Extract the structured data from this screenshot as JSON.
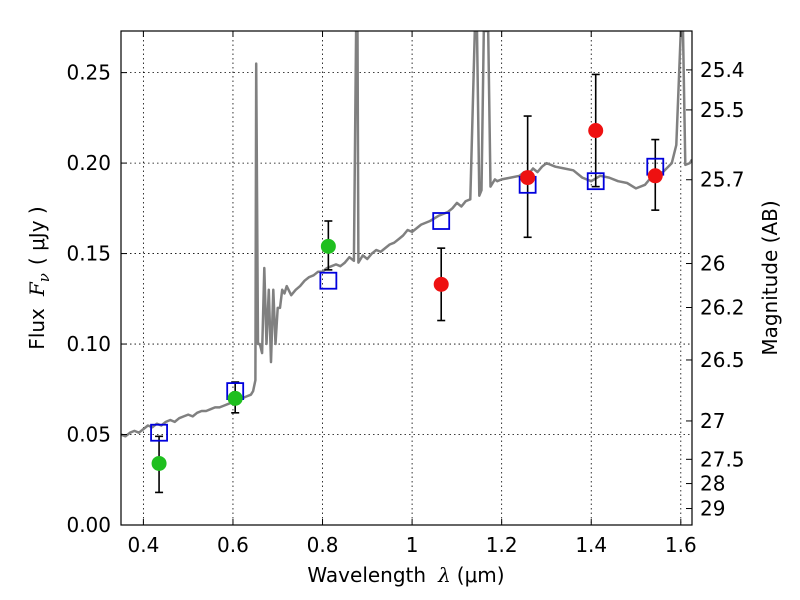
{
  "chart_data": {
    "type": "scatter",
    "xlabel": "Wavelength",
    "xlabel_symbol": "λ",
    "xlabel_unit": "(μm)",
    "ylabel": "Flux",
    "ylabel_symbol": "F",
    "ylabel_sub": "ν",
    "ylabel_unit": "( μJy )",
    "y2label": "Magnitude (AB)",
    "xlim": [
      0.35,
      1.625
    ],
    "ylim": [
      0.0,
      0.273
    ],
    "grid": true,
    "x_ticks": [
      {
        "value": 0.4,
        "label": "0.4"
      },
      {
        "value": 0.6,
        "label": "0.6"
      },
      {
        "value": 0.8,
        "label": "0.8"
      },
      {
        "value": 1.0,
        "label": "1"
      },
      {
        "value": 1.2,
        "label": "1.2"
      },
      {
        "value": 1.4,
        "label": "1.4"
      },
      {
        "value": 1.6,
        "label": "1.6"
      }
    ],
    "y_ticks": [
      {
        "value": 0.0,
        "label": "0.00"
      },
      {
        "value": 0.05,
        "label": "0.05"
      },
      {
        "value": 0.1,
        "label": "0.10"
      },
      {
        "value": 0.15,
        "label": "0.15"
      },
      {
        "value": 0.2,
        "label": "0.20"
      },
      {
        "value": 0.25,
        "label": "0.25"
      }
    ],
    "y2_ticks": [
      {
        "label": "25.4",
        "flux": 0.2515
      },
      {
        "label": "25.5",
        "flux": 0.2294
      },
      {
        "label": "25.7",
        "flux": 0.1908
      },
      {
        "label": "26",
        "flux": 0.1445
      },
      {
        "label": "26.2",
        "flux": 0.1202
      },
      {
        "label": "26.5",
        "flux": 0.0912
      },
      {
        "label": "27",
        "flux": 0.0575
      },
      {
        "label": "27.5",
        "flux": 0.0363
      },
      {
        "label": "28",
        "flux": 0.0229
      },
      {
        "label": "29",
        "flux": 0.0091
      }
    ],
    "colors": {
      "model": "#808080",
      "green_points": "#1fbf1f",
      "red_points": "#ee1111",
      "squares": "#0000dd",
      "errorbar": "#000000"
    },
    "model_spectrum": {
      "x": [
        0.35,
        0.36,
        0.37,
        0.38,
        0.39,
        0.4,
        0.41,
        0.42,
        0.43,
        0.44,
        0.45,
        0.46,
        0.47,
        0.48,
        0.49,
        0.5,
        0.51,
        0.52,
        0.53,
        0.54,
        0.55,
        0.56,
        0.57,
        0.58,
        0.59,
        0.6,
        0.61,
        0.62,
        0.63,
        0.64,
        0.645,
        0.65,
        0.652,
        0.656,
        0.66,
        0.665,
        0.67,
        0.675,
        0.68,
        0.685,
        0.69,
        0.695,
        0.7,
        0.705,
        0.71,
        0.715,
        0.72,
        0.73,
        0.74,
        0.75,
        0.76,
        0.77,
        0.78,
        0.79,
        0.8,
        0.81,
        0.82,
        0.83,
        0.84,
        0.85,
        0.86,
        0.87,
        0.875,
        0.878,
        0.88,
        0.885,
        0.89,
        0.9,
        0.91,
        0.92,
        0.93,
        0.94,
        0.95,
        0.96,
        0.97,
        0.98,
        0.99,
        1.0,
        1.02,
        1.04,
        1.06,
        1.07,
        1.08,
        1.09,
        1.1,
        1.11,
        1.12,
        1.13,
        1.14,
        1.145,
        1.15,
        1.155,
        1.16,
        1.17,
        1.175,
        1.18,
        1.185,
        1.19,
        1.2,
        1.22,
        1.24,
        1.25,
        1.26,
        1.27,
        1.28,
        1.29,
        1.3,
        1.32,
        1.34,
        1.36,
        1.38,
        1.4,
        1.42,
        1.44,
        1.46,
        1.48,
        1.5,
        1.52,
        1.54,
        1.56,
        1.58,
        1.59,
        1.6,
        1.605,
        1.61,
        1.62,
        1.625
      ],
      "y": [
        0.05,
        0.049,
        0.051,
        0.052,
        0.051,
        0.053,
        0.055,
        0.054,
        0.056,
        0.055,
        0.057,
        0.058,
        0.057,
        0.059,
        0.06,
        0.061,
        0.06,
        0.062,
        0.063,
        0.063,
        0.064,
        0.065,
        0.065,
        0.066,
        0.067,
        0.068,
        0.069,
        0.07,
        0.071,
        0.072,
        0.074,
        0.08,
        0.255,
        0.1,
        0.1,
        0.095,
        0.142,
        0.1,
        0.13,
        0.09,
        0.13,
        0.1,
        0.12,
        0.12,
        0.13,
        0.128,
        0.132,
        0.127,
        0.13,
        0.132,
        0.135,
        0.137,
        0.138,
        0.14,
        0.14,
        0.142,
        0.143,
        0.144,
        0.143,
        0.145,
        0.148,
        0.146,
        0.273,
        0.273,
        0.145,
        0.147,
        0.149,
        0.147,
        0.15,
        0.152,
        0.151,
        0.153,
        0.155,
        0.156,
        0.158,
        0.16,
        0.163,
        0.162,
        0.166,
        0.168,
        0.171,
        0.172,
        0.173,
        0.175,
        0.178,
        0.176,
        0.179,
        0.18,
        0.273,
        0.273,
        0.182,
        0.185,
        0.273,
        0.273,
        0.187,
        0.189,
        0.191,
        0.19,
        0.191,
        0.192,
        0.193,
        0.195,
        0.194,
        0.197,
        0.195,
        0.198,
        0.2,
        0.198,
        0.197,
        0.196,
        0.192,
        0.19,
        0.193,
        0.192,
        0.19,
        0.189,
        0.186,
        0.188,
        0.194,
        0.195,
        0.2,
        0.21,
        0.273,
        0.273,
        0.199,
        0.2,
        0.202
      ]
    },
    "series": [
      {
        "marker": "filled-circle-green",
        "x": [
          0.435,
          0.605,
          0.813
        ],
        "y": [
          0.034,
          0.07,
          0.154
        ],
        "yerr_low": [
          0.018,
          0.062,
          0.141
        ],
        "yerr_high": [
          0.049,
          0.079,
          0.168
        ]
      },
      {
        "marker": "filled-circle-red",
        "x": [
          1.065,
          1.258,
          1.41,
          1.543
        ],
        "y": [
          0.133,
          0.192,
          0.218,
          0.193
        ],
        "yerr_low": [
          0.113,
          0.159,
          0.187,
          0.174
        ],
        "yerr_high": [
          0.153,
          0.226,
          0.249,
          0.213
        ]
      },
      {
        "marker": "open-square-blue",
        "x": [
          0.435,
          0.605,
          0.813,
          1.065,
          1.258,
          1.41,
          1.543
        ],
        "y": [
          0.051,
          0.074,
          0.135,
          0.168,
          0.188,
          0.19,
          0.198
        ]
      }
    ]
  }
}
